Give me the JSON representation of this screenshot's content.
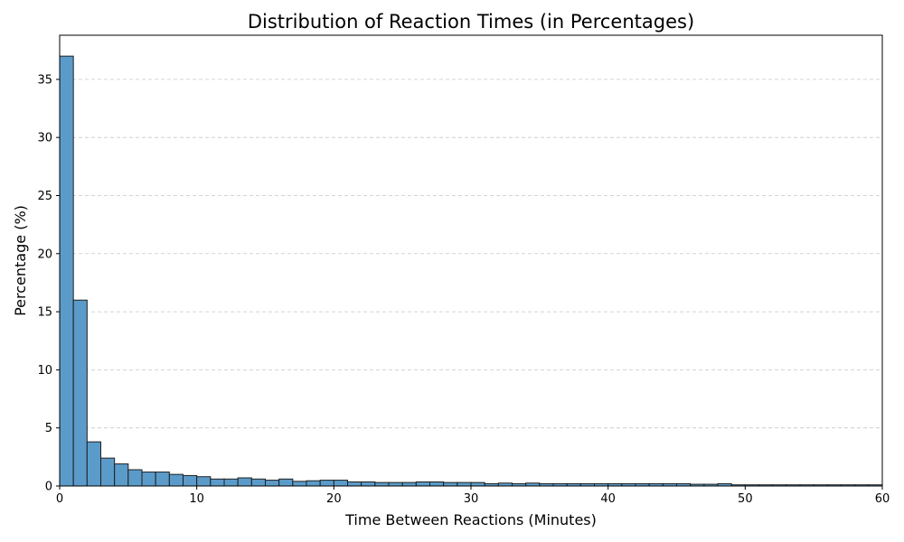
{
  "chart_data": {
    "type": "bar",
    "title": "Distribution of Reaction Times (in Percentages)",
    "xlabel": "Time Between Reactions (Minutes)",
    "ylabel": "Percentage (%)",
    "bar_color": "#5b9bc9",
    "edge_color": "#1f1f1f",
    "xlim": [
      0,
      60
    ],
    "ylim": [
      0,
      38.8
    ],
    "grid": "y-dashed",
    "bin_width": 1,
    "x_ticks": [
      0,
      10,
      20,
      30,
      40,
      50,
      60
    ],
    "y_ticks": [
      0,
      5,
      10,
      15,
      20,
      25,
      30,
      35
    ],
    "x_tick_labels": [
      "0",
      "10",
      "20",
      "30",
      "40",
      "50",
      "60"
    ],
    "y_tick_labels": [
      "0",
      "5",
      "10",
      "15",
      "20",
      "25",
      "30",
      "35"
    ],
    "bin_starts": [
      0,
      1,
      2,
      3,
      4,
      5,
      6,
      7,
      8,
      9,
      10,
      11,
      12,
      13,
      14,
      15,
      16,
      17,
      18,
      19,
      20,
      21,
      22,
      23,
      24,
      25,
      26,
      27,
      28,
      29,
      30,
      31,
      32,
      33,
      34,
      35,
      36,
      37,
      38,
      39,
      40,
      41,
      42,
      43,
      44,
      45,
      46,
      47,
      48,
      49,
      50,
      51,
      52,
      53,
      54,
      55,
      56,
      57,
      58,
      59
    ],
    "values": [
      37.0,
      16.0,
      3.8,
      2.4,
      1.9,
      1.4,
      1.2,
      1.2,
      1.0,
      0.9,
      0.8,
      0.6,
      0.6,
      0.7,
      0.6,
      0.5,
      0.6,
      0.4,
      0.45,
      0.5,
      0.5,
      0.35,
      0.35,
      0.3,
      0.3,
      0.3,
      0.35,
      0.35,
      0.3,
      0.3,
      0.3,
      0.2,
      0.25,
      0.2,
      0.25,
      0.2,
      0.2,
      0.2,
      0.2,
      0.2,
      0.2,
      0.2,
      0.2,
      0.2,
      0.2,
      0.2,
      0.15,
      0.15,
      0.2,
      0.1,
      0.1,
      0.1,
      0.1,
      0.1,
      0.1,
      0.1,
      0.1,
      0.1,
      0.1,
      0.1
    ]
  }
}
